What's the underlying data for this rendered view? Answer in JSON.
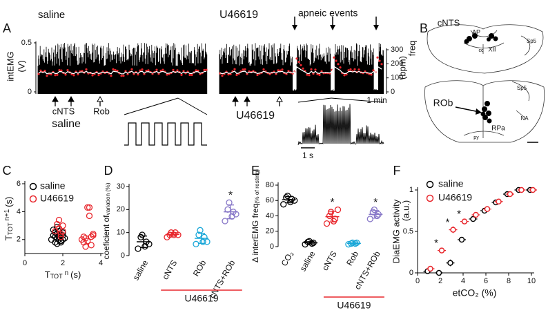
{
  "panel_a": {
    "label": "A",
    "left_title": "saline",
    "right_title": "U46619",
    "annotation": "apneic events",
    "ylabel": [
      "intEMG",
      "(V)"
    ],
    "yticks": [
      0.5,
      0
    ],
    "y2label": [
      "freq",
      "(bpm)"
    ],
    "y2ticks": [
      300,
      200,
      100,
      0
    ],
    "arrow_labels": [
      "cNTS",
      "Rob"
    ],
    "left_caption": "saline",
    "right_caption": "U46619",
    "scale_min": "1 min",
    "scale_s": "1 s"
  },
  "panel_b": {
    "label": "B",
    "title": "cNTS",
    "top_labels": [
      "AP",
      "cc",
      "XII",
      "Sp5"
    ],
    "bottom_labels": [
      "ROb",
      "RPa",
      "NA",
      "py",
      "Sp5"
    ]
  },
  "chart_data": [
    {
      "type": "scatter",
      "label": "C",
      "xlabel": [
        "T",
        "TOT",
        "n",
        "(s)"
      ],
      "ylabel": [
        "T",
        "TOT",
        "n+1",
        "(s)"
      ],
      "xlim": [
        0,
        4
      ],
      "xticks": [
        0,
        2,
        4
      ],
      "ylim": [
        1,
        6
      ],
      "yticks": [
        2,
        4,
        6
      ],
      "series": [
        {
          "name": "saline",
          "color": "#000000",
          "x": [
            1.4,
            1.5,
            1.6,
            1.6,
            1.7,
            1.7,
            1.8,
            1.8,
            1.9,
            1.9,
            2.0,
            2.0,
            1.5,
            1.7,
            1.9,
            2.1,
            1.6,
            1.8,
            2.0,
            1.7
          ],
          "values": [
            2.0,
            2.3,
            1.8,
            2.5,
            2.1,
            1.7,
            2.2,
            2.6,
            1.9,
            2.4,
            2.0,
            2.3,
            2.7,
            2.9,
            1.8,
            2.1,
            2.2,
            2.0,
            2.5,
            2.4
          ]
        },
        {
          "name": "U46619",
          "color": "#e8262c",
          "x": [
            1.6,
            1.8,
            2.0,
            1.9,
            1.7,
            1.9,
            2.0,
            1.8,
            3.0,
            3.1,
            3.2,
            3.2,
            3.3,
            3.3,
            3.4,
            3.5,
            3.5,
            3.6,
            3.6,
            3.4,
            3.1
          ],
          "values": [
            2.6,
            2.8,
            3.0,
            2.4,
            3.1,
            2.2,
            2.6,
            3.4,
            2.0,
            1.8,
            2.1,
            1.5,
            1.9,
            4.3,
            4.3,
            2.2,
            1.6,
            2.3,
            2.4,
            3.7,
            2.2
          ]
        }
      ]
    },
    {
      "type": "strip",
      "label": "D",
      "ylabel": [
        "coeficient of",
        "variation (%)"
      ],
      "ylim": [
        0,
        30
      ],
      "yticks": [
        0,
        10,
        20,
        30
      ],
      "group_label": "U46619",
      "groups": [
        {
          "name": "saline",
          "color": "#000000",
          "values": [
            3,
            4,
            6,
            8,
            9,
            5
          ],
          "mean": 6,
          "sd": 2.5
        },
        {
          "name": "cNTS",
          "color": "#e8262c",
          "values": [
            8,
            9,
            10,
            9,
            10,
            9
          ],
          "mean": 9.2,
          "sd": 0.8
        },
        {
          "name": "ROb",
          "color": "#1aa7d8",
          "values": [
            5,
            6,
            8,
            9,
            11,
            6
          ],
          "mean": 7.5,
          "sd": 2.2
        },
        {
          "name": "cNTS+ROb",
          "color": "#8878c8",
          "values": [
            15,
            17,
            19,
            20,
            23,
            18
          ],
          "mean": 19,
          "sd": 3,
          "annotation": "*"
        }
      ]
    },
    {
      "type": "strip",
      "label": "E",
      "ylabel": [
        "Δ interEMG freq",
        "(% of resting)"
      ],
      "ylim": [
        0,
        80
      ],
      "yticks": [
        0,
        20,
        40,
        60,
        80
      ],
      "group_label": "U46619",
      "groups": [
        {
          "name": "CO₂",
          "color": "#000000",
          "values": [
            55,
            58,
            62,
            64,
            66,
            60
          ],
          "mean": 61,
          "sd": 4
        },
        {
          "name": "saline",
          "color": "#000000",
          "values": [
            3,
            4,
            5,
            6,
            7
          ],
          "mean": 5,
          "sd": 1.5
        },
        {
          "name": "cNTS",
          "color": "#e8262c",
          "values": [
            30,
            33,
            36,
            40,
            45,
            48
          ],
          "mean": 39,
          "sd": 7,
          "annotation": "*"
        },
        {
          "name": "Rob",
          "color": "#1aa7d8",
          "values": [
            3,
            4,
            5,
            4,
            5
          ],
          "mean": 4.2,
          "sd": 0.8
        },
        {
          "name": "cNTS+ROb",
          "color": "#8878c8",
          "values": [
            36,
            40,
            42,
            45,
            48
          ],
          "mean": 42,
          "sd": 5,
          "annotation": "*"
        }
      ]
    },
    {
      "type": "errorbar",
      "label": "F",
      "xlabel": "etCO₂ (%)",
      "ylabel": [
        "DiaEMG activity",
        "(a.u.)"
      ],
      "xlim": [
        0,
        10
      ],
      "xticks": [
        0,
        2,
        4,
        6,
        8,
        10
      ],
      "ylim": [
        0,
        1
      ],
      "yticks": [
        0,
        0.5,
        1
      ],
      "x": [
        1,
        2,
        3,
        4,
        5,
        6,
        7,
        8,
        9,
        10
      ],
      "significance": [
        null,
        "*",
        "*",
        "*",
        null,
        null,
        null,
        null,
        null,
        null
      ],
      "series": [
        {
          "name": "saline",
          "color": "#000000",
          "values": [
            0.02,
            0.0,
            0.12,
            0.4,
            0.65,
            0.75,
            0.85,
            0.95,
            1.0,
            1.0
          ],
          "errors": [
            0.03,
            0.03,
            0.04,
            0.03,
            0.03,
            0.03,
            0.03,
            0.03,
            0.03,
            0.03
          ]
        },
        {
          "name": "U46619",
          "color": "#e8262c",
          "values": [
            0.05,
            0.27,
            0.52,
            0.62,
            0.7,
            0.77,
            0.86,
            0.95,
            1.0,
            1.0
          ],
          "errors": [
            0.03,
            0.03,
            0.04,
            0.03,
            0.03,
            0.03,
            0.03,
            0.03,
            0.03,
            0.03
          ]
        }
      ]
    }
  ]
}
